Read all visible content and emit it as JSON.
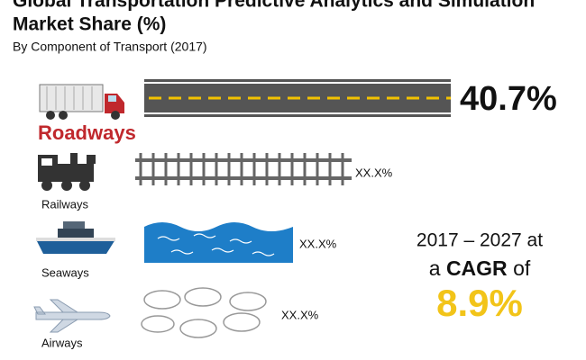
{
  "header": {
    "title_lines": [
      "Global Transportation Predictive Analytics and Simulation",
      "Market Share (%)"
    ],
    "subtitle": "By Component of Transport (2017)"
  },
  "segments": [
    {
      "label": "Roadways",
      "share": "40.7%"
    },
    {
      "label": "Railways",
      "share": "XX.X%"
    },
    {
      "label": "Seaways",
      "share": "XX.X%"
    },
    {
      "label": "Airways",
      "share": "XX.X%"
    }
  ],
  "cagr": {
    "period": "2017 – 2027 at",
    "prefix": "a",
    "emphasis": "CAGR",
    "suffix": "of",
    "value": "8.9%"
  }
}
